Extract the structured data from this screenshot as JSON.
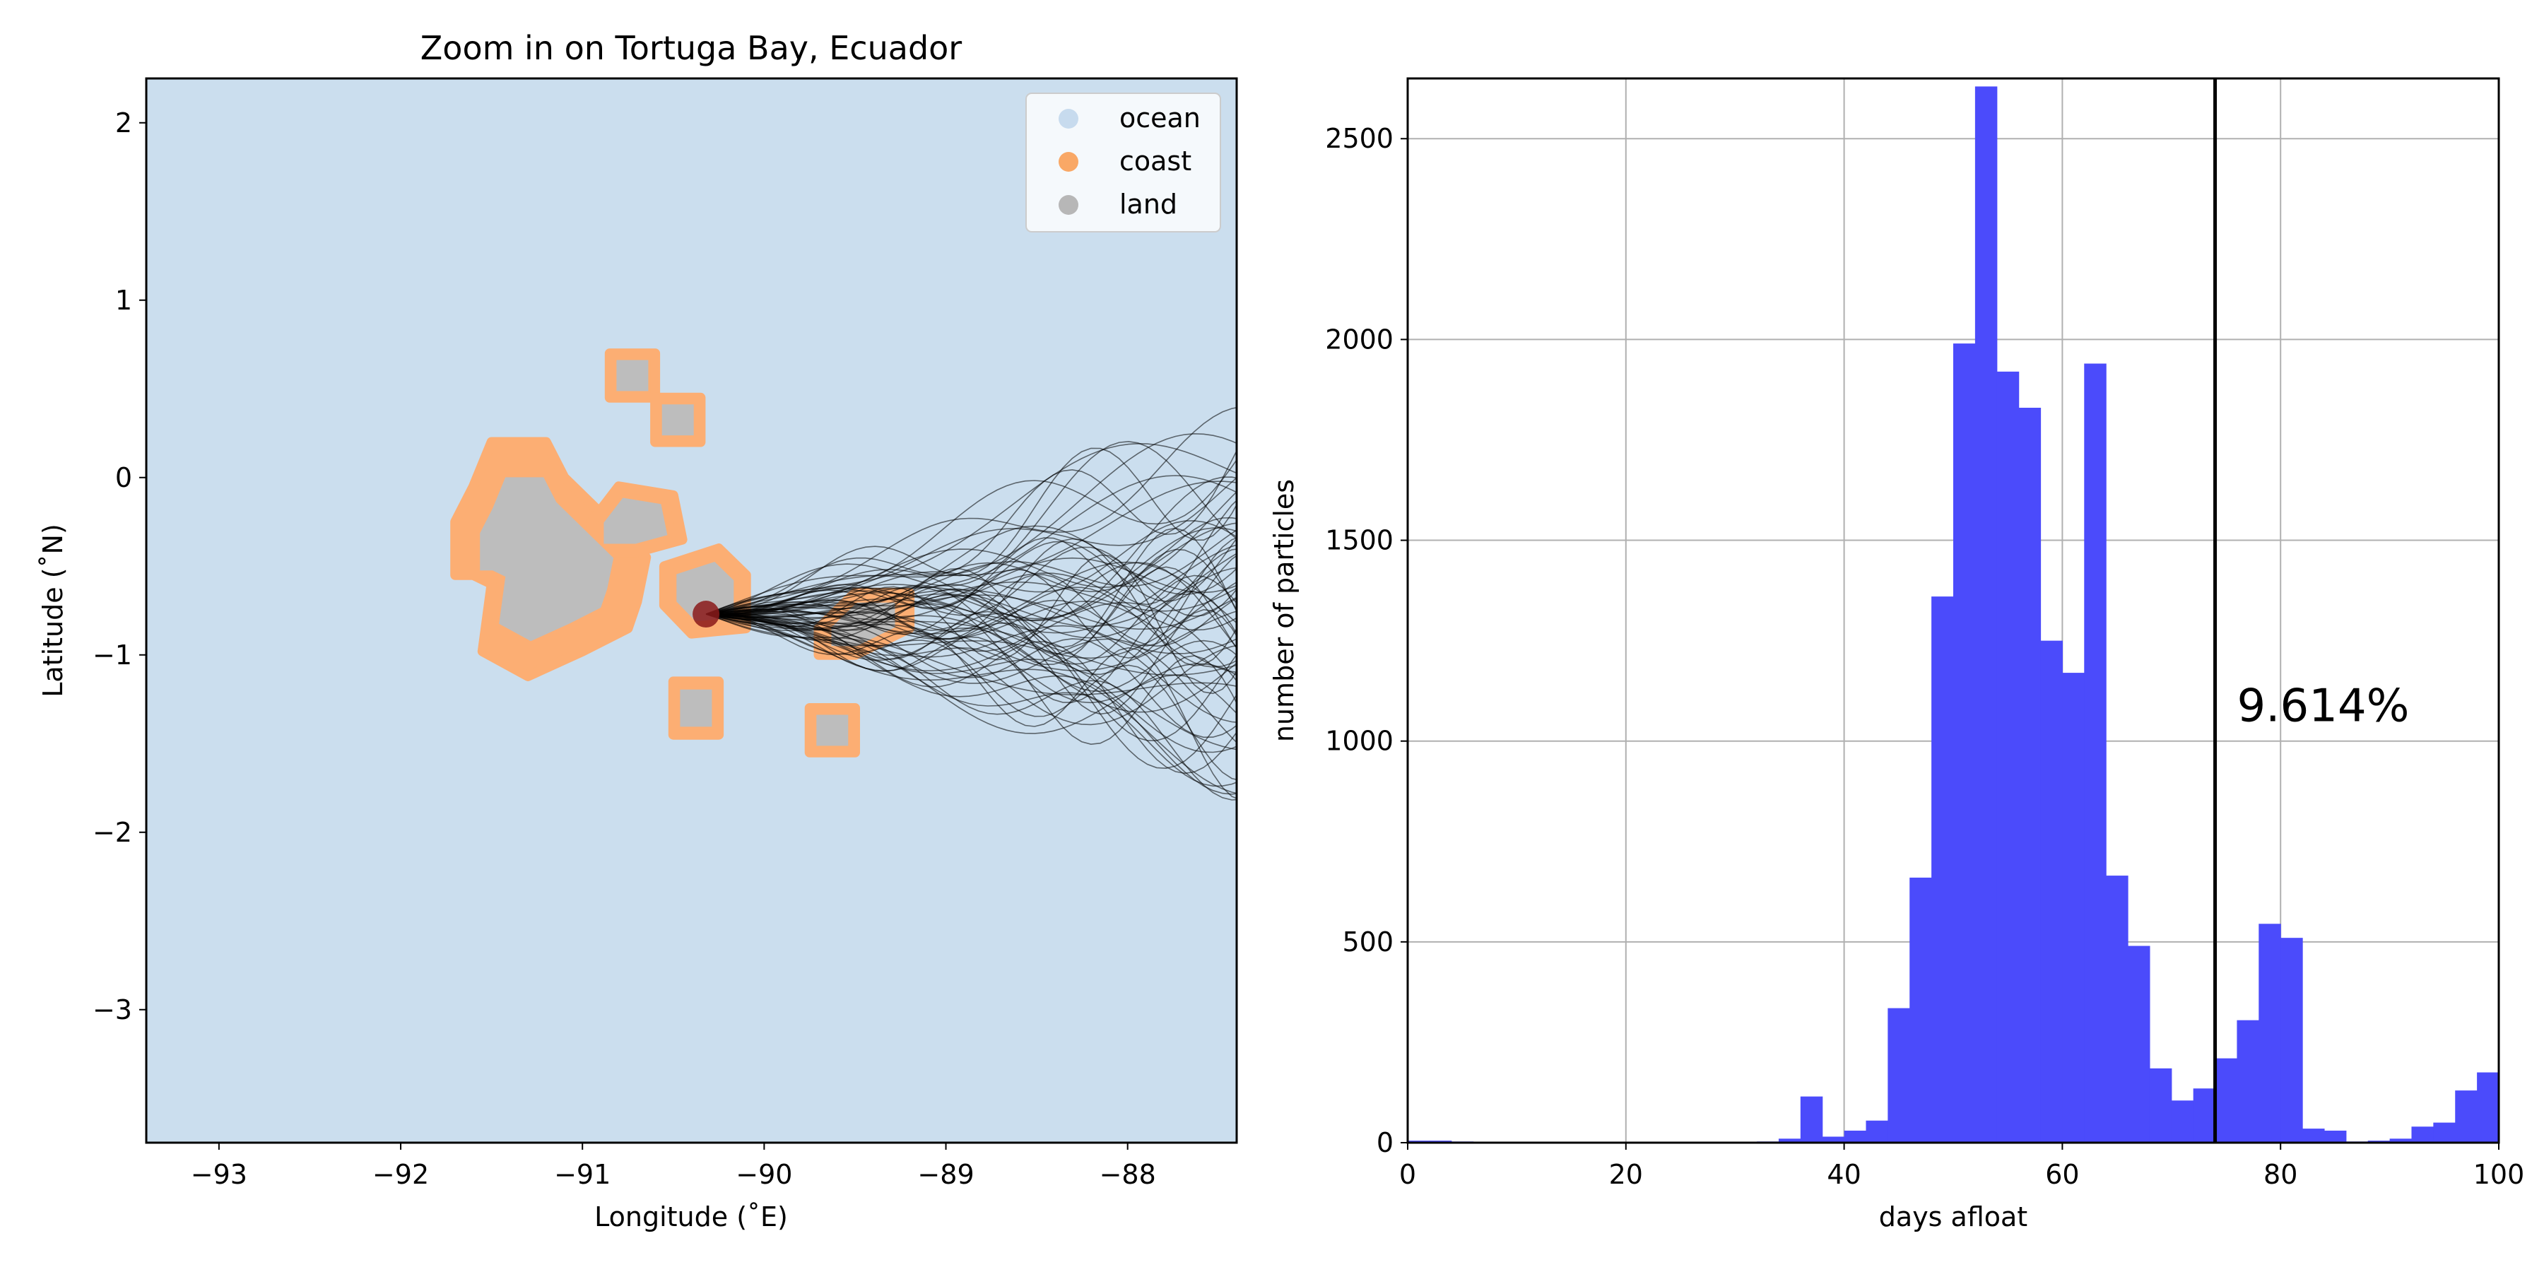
{
  "chart_data": [
    {
      "type": "map",
      "title": "Zoom in on Tortuga Bay, Ecuador",
      "xlabel": "Longitude (˚E)",
      "ylabel": "Latitude (˚N)",
      "xlim": [
        -93.4,
        -87.4
      ],
      "ylim": [
        -3.75,
        2.25
      ],
      "xticks": [
        -93,
        -92,
        -91,
        -90,
        -89,
        -88
      ],
      "yticks": [
        2,
        1,
        0,
        -1,
        -2,
        -3
      ],
      "legend": {
        "position": "top-right",
        "entries": [
          {
            "label": "ocean",
            "color": "#c7dbee"
          },
          {
            "label": "coast",
            "color": "#f9a866"
          },
          {
            "label": "land",
            "color": "#b7b7b7"
          }
        ]
      },
      "colors": {
        "ocean": "#cbdeee",
        "coast": "#fcae73",
        "land": "#bdbdbd",
        "trajectory": "#000000",
        "release_point": "#8b1a1a"
      },
      "release_point": {
        "lon": -90.32,
        "lat": -0.77
      },
      "islands": [
        {
          "name_hint": "isabela-fernandina",
          "coast": [
            [
              -91.7,
              -0.25
            ],
            [
              -91.6,
              -0.05
            ],
            [
              -91.5,
              0.2
            ],
            [
              -91.2,
              0.2
            ],
            [
              -91.1,
              0.0
            ],
            [
              -90.85,
              -0.25
            ],
            [
              -90.65,
              -0.45
            ],
            [
              -90.7,
              -0.7
            ],
            [
              -90.75,
              -0.85
            ],
            [
              -91.0,
              -0.98
            ],
            [
              -91.3,
              -1.12
            ],
            [
              -91.55,
              -0.98
            ],
            [
              -91.5,
              -0.6
            ],
            [
              -91.6,
              -0.55
            ],
            [
              -91.7,
              -0.55
            ]
          ]
        },
        {
          "name_hint": "santiago",
          "coast": [
            [
              -90.95,
              -0.25
            ],
            [
              -90.8,
              -0.05
            ],
            [
              -90.5,
              -0.1
            ],
            [
              -90.45,
              -0.35
            ],
            [
              -90.7,
              -0.42
            ],
            [
              -90.95,
              -0.42
            ]
          ]
        },
        {
          "name_hint": "santa-cruz",
          "coast": [
            [
              -90.55,
              -0.5
            ],
            [
              -90.25,
              -0.4
            ],
            [
              -90.1,
              -0.55
            ],
            [
              -90.1,
              -0.85
            ],
            [
              -90.4,
              -0.88
            ],
            [
              -90.55,
              -0.72
            ]
          ]
        },
        {
          "name_hint": "san-cristobal",
          "coast": [
            [
              -89.7,
              -0.85
            ],
            [
              -89.5,
              -0.65
            ],
            [
              -89.2,
              -0.65
            ],
            [
              -89.2,
              -0.85
            ],
            [
              -89.5,
              -1.0
            ],
            [
              -89.7,
              -1.0
            ]
          ]
        },
        {
          "name_hint": "floreana",
          "coast": [
            [
              -90.5,
              -1.15
            ],
            [
              -90.25,
              -1.15
            ],
            [
              -90.25,
              -1.45
            ],
            [
              -90.5,
              -1.45
            ]
          ]
        },
        {
          "name_hint": "espanola",
          "coast": [
            [
              -89.75,
              -1.3
            ],
            [
              -89.5,
              -1.3
            ],
            [
              -89.5,
              -1.55
            ],
            [
              -89.75,
              -1.55
            ]
          ]
        },
        {
          "name_hint": "pinta",
          "coast": [
            [
              -90.85,
              0.7
            ],
            [
              -90.6,
              0.7
            ],
            [
              -90.6,
              0.45
            ],
            [
              -90.85,
              0.45
            ]
          ]
        },
        {
          "name_hint": "marchena",
          "coast": [
            [
              -90.6,
              0.45
            ],
            [
              -90.35,
              0.45
            ],
            [
              -90.35,
              0.2
            ],
            [
              -90.6,
              0.2
            ]
          ]
        }
      ]
    },
    {
      "type": "bar",
      "xlabel": "days afloat",
      "ylabel": "number of particles",
      "xlim": [
        0,
        100
      ],
      "ylim": [
        0,
        2650
      ],
      "xticks": [
        0,
        20,
        40,
        60,
        80,
        100
      ],
      "yticks": [
        0,
        500,
        1000,
        1500,
        2000,
        2500
      ],
      "grid": true,
      "bin_width": 2,
      "bar_color": "#4b4bfb",
      "bins": [
        {
          "x0": 0,
          "value": 5
        },
        {
          "x0": 2,
          "value": 5
        },
        {
          "x0": 4,
          "value": 3
        },
        {
          "x0": 6,
          "value": 2
        },
        {
          "x0": 8,
          "value": 2
        },
        {
          "x0": 10,
          "value": 2
        },
        {
          "x0": 12,
          "value": 2
        },
        {
          "x0": 14,
          "value": 2
        },
        {
          "x0": 16,
          "value": 2
        },
        {
          "x0": 18,
          "value": 2
        },
        {
          "x0": 20,
          "value": 2
        },
        {
          "x0": 22,
          "value": 2
        },
        {
          "x0": 24,
          "value": 2
        },
        {
          "x0": 26,
          "value": 2
        },
        {
          "x0": 28,
          "value": 2
        },
        {
          "x0": 30,
          "value": 2
        },
        {
          "x0": 32,
          "value": 3
        },
        {
          "x0": 34,
          "value": 10
        },
        {
          "x0": 36,
          "value": 115
        },
        {
          "x0": 38,
          "value": 15
        },
        {
          "x0": 40,
          "value": 30
        },
        {
          "x0": 42,
          "value": 55
        },
        {
          "x0": 44,
          "value": 335
        },
        {
          "x0": 46,
          "value": 660
        },
        {
          "x0": 48,
          "value": 1360
        },
        {
          "x0": 50,
          "value": 1990
        },
        {
          "x0": 52,
          "value": 2630
        },
        {
          "x0": 54,
          "value": 1920
        },
        {
          "x0": 56,
          "value": 1830
        },
        {
          "x0": 58,
          "value": 1250
        },
        {
          "x0": 60,
          "value": 1170
        },
        {
          "x0": 62,
          "value": 1940
        },
        {
          "x0": 64,
          "value": 665
        },
        {
          "x0": 66,
          "value": 490
        },
        {
          "x0": 68,
          "value": 185
        },
        {
          "x0": 70,
          "value": 105
        },
        {
          "x0": 72,
          "value": 135
        },
        {
          "x0": 74,
          "value": 210
        },
        {
          "x0": 76,
          "value": 305
        },
        {
          "x0": 78,
          "value": 545
        },
        {
          "x0": 80,
          "value": 510
        },
        {
          "x0": 82,
          "value": 35
        },
        {
          "x0": 84,
          "value": 30
        },
        {
          "x0": 86,
          "value": 3
        },
        {
          "x0": 88,
          "value": 5
        },
        {
          "x0": 90,
          "value": 10
        },
        {
          "x0": 92,
          "value": 40
        },
        {
          "x0": 94,
          "value": 50
        },
        {
          "x0": 96,
          "value": 130
        },
        {
          "x0": 98,
          "value": 175
        }
      ],
      "threshold_line": {
        "x": 74
      },
      "annotation": {
        "text": "9.614%",
        "x": 76,
        "y": 1050
      }
    }
  ]
}
